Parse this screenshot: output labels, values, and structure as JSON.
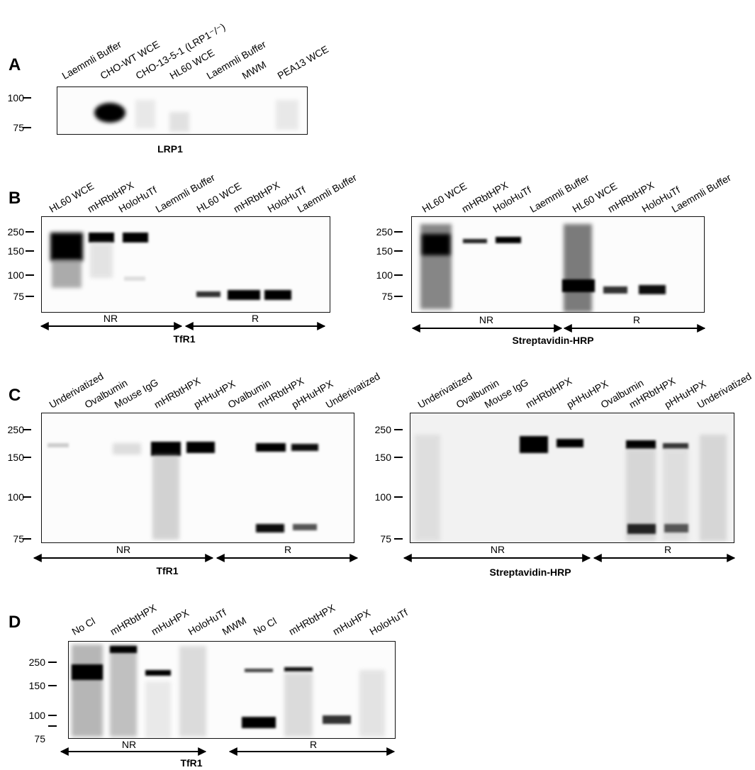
{
  "panelA": {
    "label": "A",
    "lanes": [
      "Laemmli Buffer",
      "CHO-WT WCE",
      "CHO-13-5-1 (LRP1⁻/⁻)",
      "HL60 WCE",
      "Laemmli Buffer",
      "MWM",
      "PEA13 WCE"
    ],
    "markers": [
      "100",
      "75"
    ],
    "caption": "LRP1"
  },
  "panelB": {
    "label": "B",
    "left": {
      "lanes": [
        "HL60 WCE",
        "mHRbtHPX",
        "HoloHuTf",
        "Laemmli Buffer",
        "HL60 WCE",
        "mHRbtHPX",
        "HoloHuTf",
        "Laemmli Buffer"
      ],
      "markers": [
        "250",
        "150",
        "100",
        "75"
      ],
      "arrows": [
        "NR",
        "R"
      ],
      "caption": "TfR1"
    },
    "right": {
      "lanes": [
        "HL60 WCE",
        "mHRbtHPX",
        "HoloHuTf",
        "Laemmli Buffer",
        "HL60 WCE",
        "mHRbtHPX",
        "HoloHuTf",
        "Laemmli Buffer"
      ],
      "markers": [
        "250",
        "150",
        "100",
        "75"
      ],
      "arrows": [
        "NR",
        "R"
      ],
      "caption": "Streptavidin-HRP"
    }
  },
  "panelC": {
    "label": "C",
    "left": {
      "lanes": [
        "Underivatized",
        "Ovalbumin",
        "Mouse IgG",
        "mHRbtHPX",
        "pHHuHPX",
        "Ovalbumin",
        "mHRbtHPX",
        "pHHuHPX",
        "Underivatized"
      ],
      "markers": [
        "250",
        "150",
        "100",
        "75"
      ],
      "arrows": [
        "NR",
        "R"
      ],
      "caption": "TfR1"
    },
    "right": {
      "lanes": [
        "Underivatized",
        "Ovalbumin",
        "Mouse IgG",
        "mHRbtHPX",
        "pHHuHPX",
        "Ovalbumin",
        "mHRbtHPX",
        "pHHuHPX",
        "Underivatized"
      ],
      "markers": [
        "250",
        "150",
        "100",
        "75"
      ],
      "arrows": [
        "NR",
        "R"
      ],
      "caption": "Streptavidin-HRP"
    }
  },
  "panelD": {
    "label": "D",
    "lanes": [
      "No Cl",
      "mHRbtHPX",
      "mHuHPX",
      "HoloHuTf",
      "MWM",
      "No Cl",
      "mHRbtHPX",
      "mHuHPX",
      "HoloHuTf"
    ],
    "markers": [
      "250",
      "150",
      "100",
      "75"
    ],
    "arrows": [
      "NR",
      "R"
    ],
    "caption": "TfR1"
  }
}
